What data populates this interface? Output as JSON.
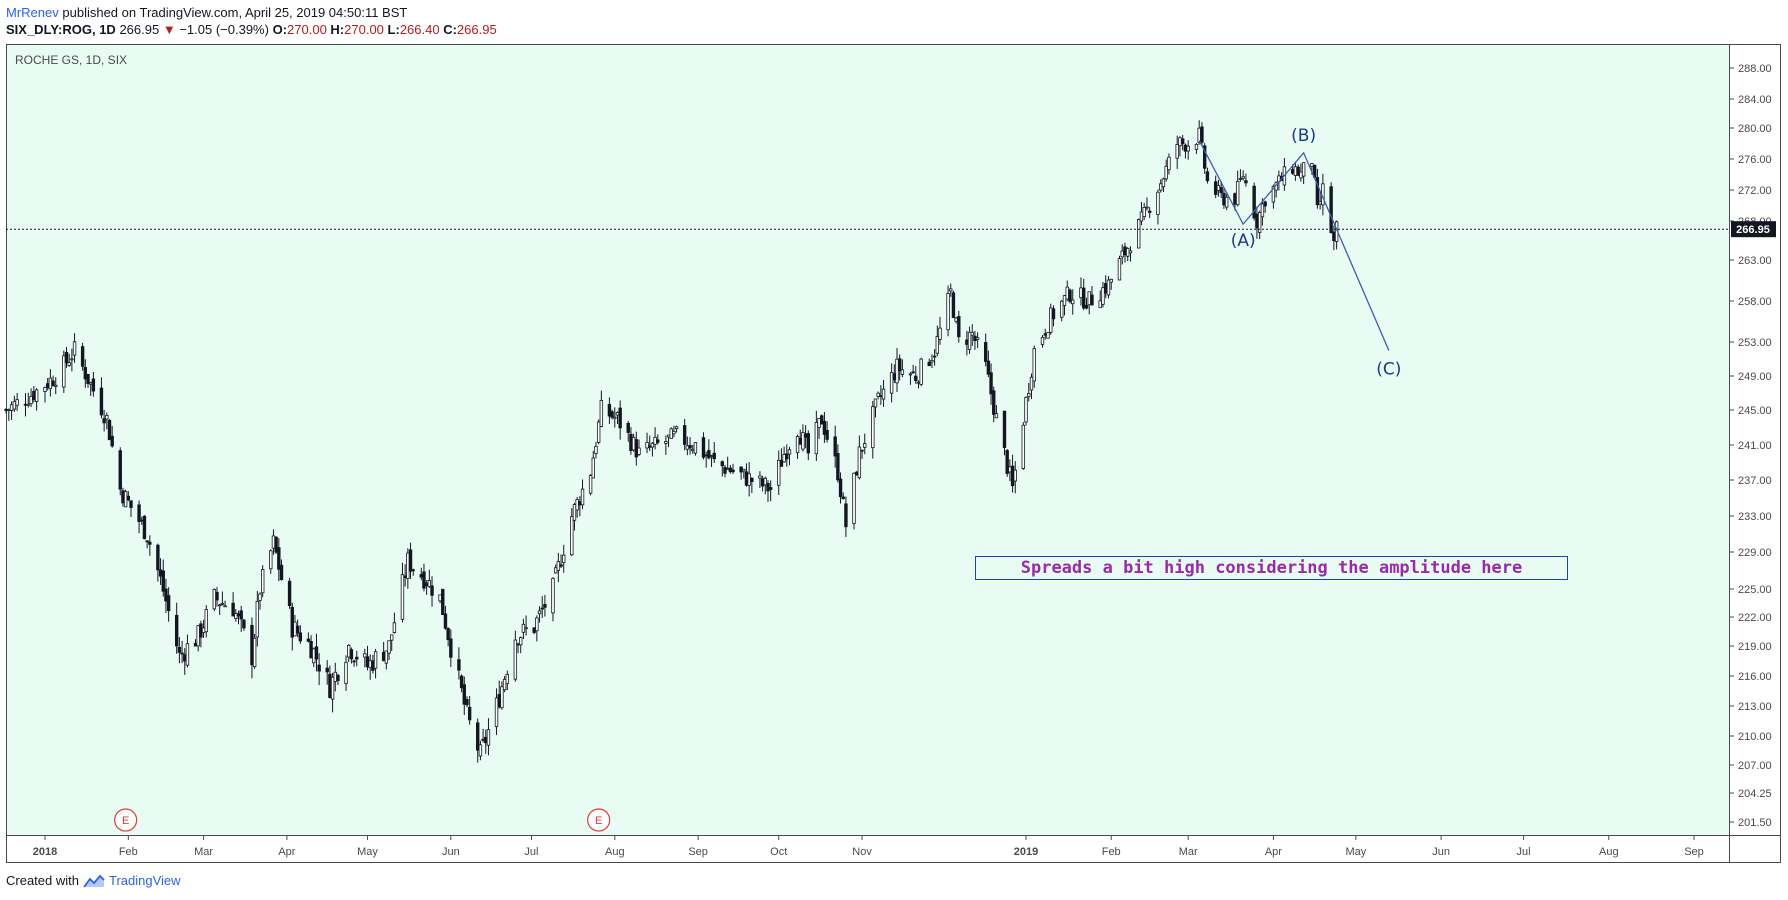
{
  "header": {
    "user": "MrRenev",
    "published_text": "published on TradingView.com, April 25, 2019 04:50:11 BST",
    "symbol": "SIX_DLY:ROG, 1D",
    "last": "266.95",
    "change": "−1.05 (−0.39%)",
    "o_label": "O:",
    "o": "270.00",
    "h_label": "H:",
    "h": "270.00",
    "l_label": "L:",
    "l": "266.40",
    "c_label": "C:",
    "c": "266.95"
  },
  "footer": {
    "created_with": "Created with",
    "brand": "TradingView"
  },
  "annotation": {
    "text": "Spreads a bit high considering the amplitude here"
  },
  "colors": {
    "background": "#e9fcf4",
    "candle": "#131722",
    "wave": "#3b5bb5",
    "wave_label": "#1a3a8a",
    "earnings": "#e53935",
    "price_tag": "#131722"
  },
  "chart_data": {
    "type": "candlestick",
    "title": "ROCHE GS, 1D, SIX",
    "last_price": 266.95,
    "y_ticks": [
      201.5,
      204.25,
      207.0,
      210.0,
      213.0,
      216.0,
      219.0,
      222.0,
      225.0,
      229.0,
      233.0,
      237.0,
      241.0,
      245.0,
      249.0,
      253.0,
      258.0,
      263.0,
      268.0,
      272.0,
      276.0,
      280.0,
      284.0,
      288.0
    ],
    "x_ticks": [
      {
        "label": "2018",
        "date": "2018-01-01",
        "bold": true
      },
      {
        "label": "Feb",
        "date": "2018-02-01"
      },
      {
        "label": "Mar",
        "date": "2018-03-01"
      },
      {
        "label": "Apr",
        "date": "2018-04-01"
      },
      {
        "label": "May",
        "date": "2018-05-01"
      },
      {
        "label": "Jun",
        "date": "2018-06-01"
      },
      {
        "label": "Jul",
        "date": "2018-07-01"
      },
      {
        "label": "Aug",
        "date": "2018-08-01"
      },
      {
        "label": "Sep",
        "date": "2018-09-01"
      },
      {
        "label": "Oct",
        "date": "2018-10-01"
      },
      {
        "label": "Nov",
        "date": "2018-11-01"
      },
      {
        "label": "2019",
        "date": "2019-01-01",
        "bold": true
      },
      {
        "label": "Feb",
        "date": "2019-02-01"
      },
      {
        "label": "Mar",
        "date": "2019-03-01"
      },
      {
        "label": "Apr",
        "date": "2019-04-01"
      },
      {
        "label": "May",
        "date": "2019-05-01"
      },
      {
        "label": "Jun",
        "date": "2019-06-01"
      },
      {
        "label": "Jul",
        "date": "2019-07-01"
      },
      {
        "label": "Aug",
        "date": "2019-08-01"
      },
      {
        "label": "Sep",
        "date": "2019-09-01"
      }
    ],
    "close_path": [
      [
        "2017-12-18",
        245
      ],
      [
        "2017-12-28",
        247
      ],
      [
        "2018-01-05",
        249
      ],
      [
        "2018-01-12",
        252
      ],
      [
        "2018-01-18",
        248
      ],
      [
        "2018-01-24",
        244
      ],
      [
        "2018-01-29",
        236
      ],
      [
        "2018-02-02",
        234
      ],
      [
        "2018-02-08",
        231
      ],
      [
        "2018-02-13",
        226
      ],
      [
        "2018-02-20",
        218
      ],
      [
        "2018-02-27",
        220
      ],
      [
        "2018-03-05",
        224
      ],
      [
        "2018-03-12",
        223
      ],
      [
        "2018-03-19",
        218
      ],
      [
        "2018-03-22",
        225
      ],
      [
        "2018-03-27",
        230
      ],
      [
        "2018-04-03",
        221
      ],
      [
        "2018-04-10",
        219
      ],
      [
        "2018-04-17",
        215
      ],
      [
        "2018-04-24",
        219
      ],
      [
        "2018-05-01",
        217
      ],
      [
        "2018-05-09",
        219
      ],
      [
        "2018-05-16",
        228
      ],
      [
        "2018-05-23",
        226
      ],
      [
        "2018-05-28",
        224
      ],
      [
        "2018-06-01",
        219
      ],
      [
        "2018-06-07",
        212
      ],
      [
        "2018-06-12",
        208
      ],
      [
        "2018-06-18",
        213
      ],
      [
        "2018-06-25",
        220
      ],
      [
        "2018-07-02",
        221
      ],
      [
        "2018-07-09",
        225
      ],
      [
        "2018-07-16",
        233
      ],
      [
        "2018-07-23",
        238
      ],
      [
        "2018-07-27",
        245
      ],
      [
        "2018-08-02",
        244
      ],
      [
        "2018-08-10",
        240
      ],
      [
        "2018-08-17",
        241
      ],
      [
        "2018-08-24",
        242
      ],
      [
        "2018-08-31",
        241
      ],
      [
        "2018-09-07",
        239
      ],
      [
        "2018-09-14",
        238
      ],
      [
        "2018-09-21",
        237
      ],
      [
        "2018-09-28",
        236
      ],
      [
        "2018-10-03",
        240
      ],
      [
        "2018-10-08",
        243
      ],
      [
        "2018-10-12",
        240
      ],
      [
        "2018-10-17",
        244
      ],
      [
        "2018-10-23",
        238
      ],
      [
        "2018-10-26",
        232
      ],
      [
        "2018-10-31",
        240
      ],
      [
        "2018-11-07",
        246
      ],
      [
        "2018-11-14",
        250
      ],
      [
        "2018-11-21",
        249
      ],
      [
        "2018-11-28",
        252
      ],
      [
        "2018-12-04",
        259
      ],
      [
        "2018-12-07",
        253
      ],
      [
        "2018-12-12",
        254
      ],
      [
        "2018-12-17",
        250
      ],
      [
        "2018-12-21",
        244
      ],
      [
        "2018-12-27",
        236
      ],
      [
        "2019-01-04",
        252
      ],
      [
        "2019-01-10",
        256
      ],
      [
        "2019-01-17",
        259
      ],
      [
        "2019-01-24",
        258
      ],
      [
        "2019-01-31",
        260
      ],
      [
        "2019-02-06",
        264
      ],
      [
        "2019-02-12",
        268
      ],
      [
        "2019-02-19",
        273
      ],
      [
        "2019-02-25",
        278
      ],
      [
        "2019-03-01",
        278
      ],
      [
        "2019-03-05",
        279
      ],
      [
        "2019-03-08",
        273
      ],
      [
        "2019-03-13",
        271
      ],
      [
        "2019-03-18",
        271
      ],
      [
        "2019-03-21",
        274
      ],
      [
        "2019-03-26",
        268
      ],
      [
        "2019-03-29",
        271
      ],
      [
        "2019-04-03",
        273
      ],
      [
        "2019-04-08",
        275
      ],
      [
        "2019-04-11",
        274
      ],
      [
        "2019-04-15",
        276
      ],
      [
        "2019-04-17",
        269
      ],
      [
        "2019-04-19",
        272
      ],
      [
        "2019-04-23",
        265
      ],
      [
        "2019-04-24",
        267
      ]
    ],
    "wave_labels": [
      {
        "text": "(A)",
        "date": "2019-03-21",
        "price": 267.6
      },
      {
        "text": "(B)",
        "date": "2019-04-12",
        "price": 276.8
      },
      {
        "text": "(C)",
        "date": "2019-05-13",
        "price": 252.0
      }
    ],
    "wave_points": [
      {
        "date": "2019-03-05",
        "price": 278.4
      },
      {
        "date": "2019-03-21",
        "price": 267.6
      },
      {
        "date": "2019-04-12",
        "price": 276.8
      },
      {
        "date": "2019-05-13",
        "price": 252.0
      }
    ],
    "earnings_markers": [
      {
        "label": "E",
        "date": "2018-01-31"
      },
      {
        "label": "E",
        "date": "2018-07-26"
      }
    ]
  }
}
